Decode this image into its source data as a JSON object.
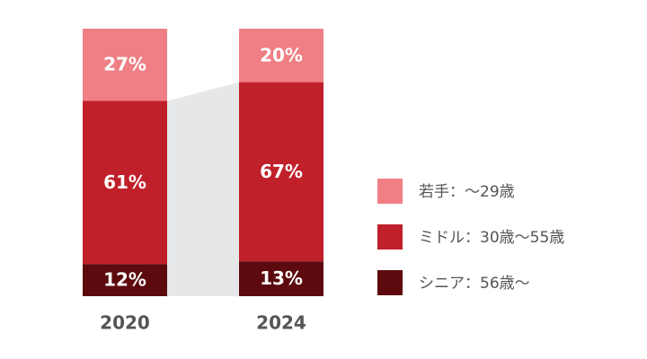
{
  "chart_data": {
    "type": "stacked_bar",
    "categories": [
      "2020",
      "2024"
    ],
    "series": [
      {
        "name": "若手：〜29歳",
        "color": "#ef7f84",
        "values": [
          27,
          20
        ],
        "value_labels": [
          "27%",
          "20%"
        ]
      },
      {
        "name": "ミドル：30歳〜55歳",
        "color": "#c0202a",
        "values": [
          61,
          67
        ],
        "value_labels": [
          "61%",
          "67%"
        ]
      },
      {
        "name": "シニア：56歳〜",
        "color": "#5c0a0e",
        "values": [
          12,
          13
        ],
        "value_labels": [
          "12%",
          "13%"
        ]
      }
    ],
    "legend": "right"
  }
}
